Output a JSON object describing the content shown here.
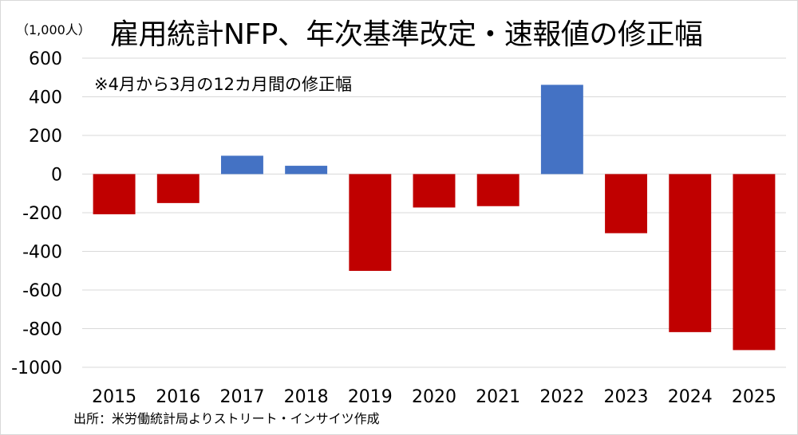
{
  "chart_data": {
    "type": "bar",
    "title": "雇用統計NFP、年次基準改定・速報値の修正幅",
    "unit_label": "（1,000人）",
    "annotation": "※4月から3月の12カ月間の修正幅",
    "source": "出所：米労働統計局よりストリート・インサイツ作成",
    "xlabel": "",
    "ylabel": "",
    "categories": [
      "2015",
      "2016",
      "2017",
      "2018",
      "2019",
      "2020",
      "2021",
      "2022",
      "2023",
      "2024",
      "2025"
    ],
    "values": [
      -208,
      -150,
      95,
      43,
      -501,
      -173,
      -166,
      462,
      -306,
      -818,
      -911
    ],
    "ylim": [
      -1000,
      600
    ],
    "yticks": [
      600,
      400,
      200,
      0,
      -200,
      -400,
      -600,
      -800,
      -1000
    ],
    "grid": true,
    "legend": "none",
    "colors": {
      "positive": "#4472c4",
      "negative": "#c00000",
      "grid": "#d9d9d9"
    }
  }
}
